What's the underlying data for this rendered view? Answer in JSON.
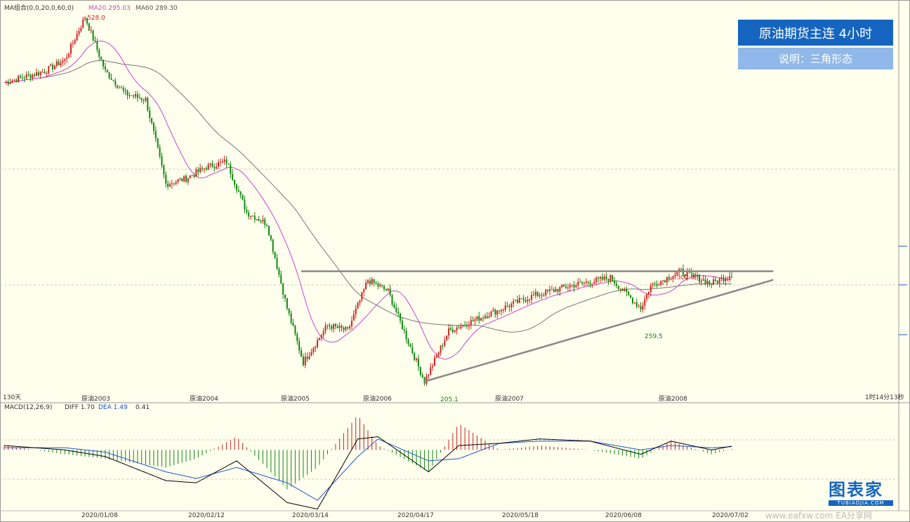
{
  "header": {
    "ma_label": "MA组合(0,0,20,0,60,0)",
    "ma20_label": "MA20 295.03",
    "ma60_label": "MA60 289.30",
    "macd_label": "MACD(12,26,9)",
    "diff_label": "DIFF 1.70",
    "dea_label": "DEA 1.49",
    "macd_value": "0.41"
  },
  "title": {
    "main": "原油期货主连  4小时",
    "note": "说明：三角形态"
  },
  "labels": {
    "high": "528.0",
    "low": "205.1",
    "resistance_peak": "302.8",
    "recent_low": "259.5",
    "period": "130天",
    "countdown": "1时14分13秒"
  },
  "contracts": [
    "原油2003",
    "原油2004",
    "原油2005",
    "原油2006",
    "原油2007",
    "原油2008"
  ],
  "dates": [
    "2020/01/08",
    "2020/02/12",
    "2020/03/14",
    "2020/04/17",
    "2020/05/18",
    "2020/06/08",
    "2020/07/02"
  ],
  "watermark": {
    "brand": "图表家",
    "domain": "TUBIAOJIA.COM",
    "site": "www.eafxw.com  EA分享网"
  },
  "colors": {
    "up": "#cc2222",
    "down": "#118811",
    "ma20": "#cc44cc",
    "ma60": "#777777",
    "diff": "#000000",
    "dea": "#2255cc",
    "trend": "#888888"
  },
  "chart_data": {
    "type": "candlestick",
    "price_ylim": [
      195,
      540
    ],
    "resistance": {
      "price": 302.8,
      "x_range": [
        147,
        358
      ]
    },
    "support": {
      "from": {
        "index": 208,
        "price": 205.1
      },
      "to": {
        "index": 358,
        "price": 289.0
      }
    },
    "price_points": [
      {
        "i": 0,
        "price": 470
      },
      {
        "i": 20,
        "price": 480
      },
      {
        "i": 30,
        "price": 490
      },
      {
        "i": 40,
        "price": 528
      },
      {
        "i": 50,
        "price": 480
      },
      {
        "i": 60,
        "price": 460
      },
      {
        "i": 70,
        "price": 455
      },
      {
        "i": 80,
        "price": 380
      },
      {
        "i": 90,
        "price": 385
      },
      {
        "i": 100,
        "price": 395
      },
      {
        "i": 110,
        "price": 400
      },
      {
        "i": 120,
        "price": 355
      },
      {
        "i": 130,
        "price": 345
      },
      {
        "i": 140,
        "price": 270
      },
      {
        "i": 148,
        "price": 222
      },
      {
        "i": 160,
        "price": 255
      },
      {
        "i": 170,
        "price": 250
      },
      {
        "i": 180,
        "price": 295
      },
      {
        "i": 190,
        "price": 285
      },
      {
        "i": 200,
        "price": 240
      },
      {
        "i": 208,
        "price": 205.1
      },
      {
        "i": 220,
        "price": 250
      },
      {
        "i": 240,
        "price": 265
      },
      {
        "i": 260,
        "price": 280
      },
      {
        "i": 280,
        "price": 290
      },
      {
        "i": 300,
        "price": 297
      },
      {
        "i": 315,
        "price": 270
      },
      {
        "i": 320,
        "price": 290
      },
      {
        "i": 335,
        "price": 302.8
      },
      {
        "i": 350,
        "price": 292
      },
      {
        "i": 360,
        "price": 300
      }
    ],
    "macd_ylim": [
      -30,
      18
    ],
    "macd_points": [
      {
        "i": 0,
        "diff": 2,
        "dea": 1
      },
      {
        "i": 30,
        "diff": 0,
        "dea": 1
      },
      {
        "i": 50,
        "diff": -3,
        "dea": -1
      },
      {
        "i": 80,
        "diff": -14,
        "dea": -10
      },
      {
        "i": 95,
        "diff": -15,
        "dea": -13
      },
      {
        "i": 115,
        "diff": -5,
        "dea": -8
      },
      {
        "i": 140,
        "diff": -24,
        "dea": -15
      },
      {
        "i": 155,
        "diff": -27,
        "dea": -23
      },
      {
        "i": 175,
        "diff": 5,
        "dea": -3
      },
      {
        "i": 185,
        "diff": 6,
        "dea": 5
      },
      {
        "i": 210,
        "diff": -10,
        "dea": -5
      },
      {
        "i": 225,
        "diff": 2,
        "dea": -4
      },
      {
        "i": 245,
        "diff": 3,
        "dea": 3
      },
      {
        "i": 265,
        "diff": 5,
        "dea": 4
      },
      {
        "i": 290,
        "diff": 4,
        "dea": 4
      },
      {
        "i": 315,
        "diff": -2,
        "dea": 0
      },
      {
        "i": 330,
        "diff": 4,
        "dea": 2
      },
      {
        "i": 350,
        "diff": 0,
        "dea": 1
      },
      {
        "i": 360,
        "diff": 1.7,
        "dea": 1.49
      }
    ]
  }
}
